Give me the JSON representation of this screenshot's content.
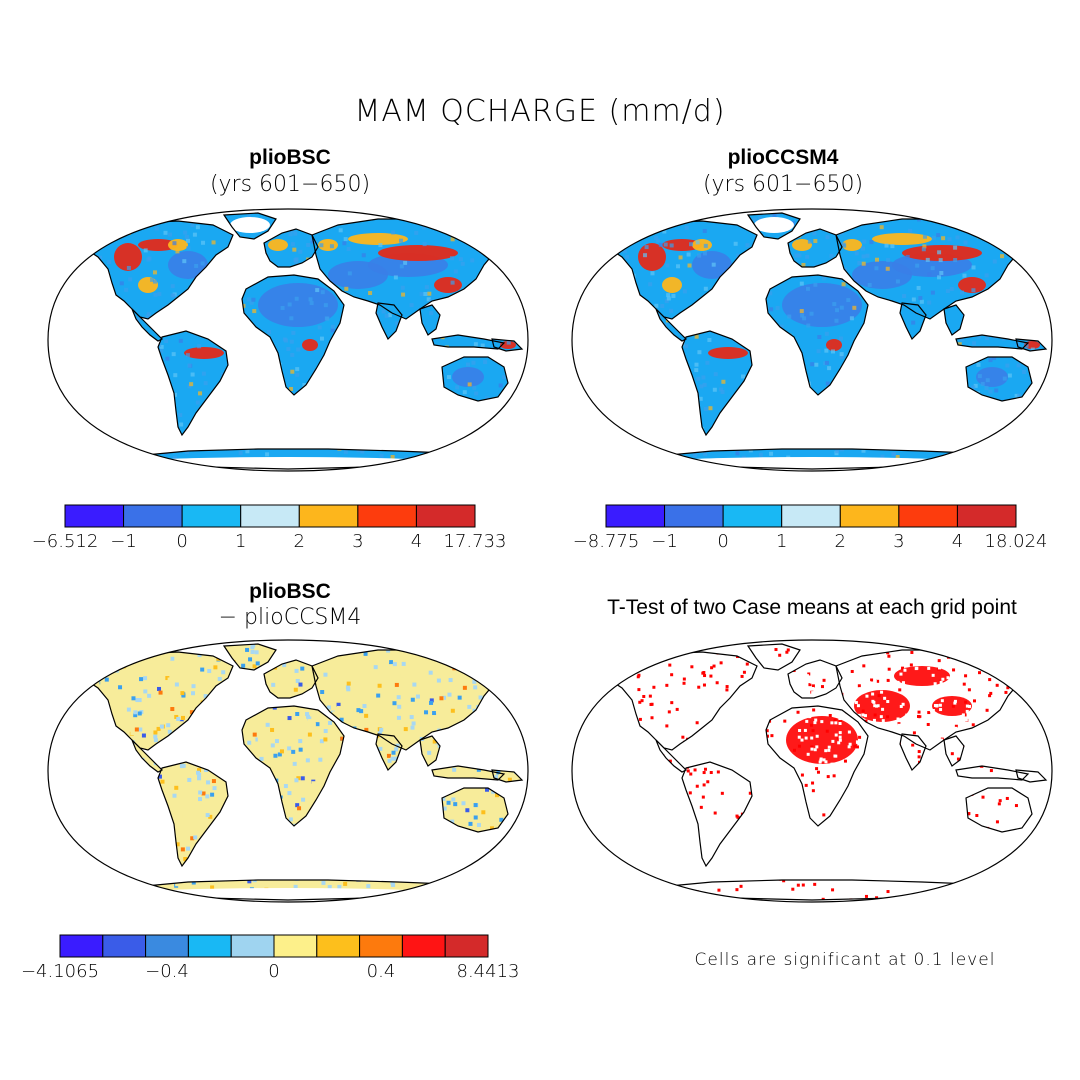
{
  "figure": {
    "title": "MAM QCHARGE (mm/d)"
  },
  "panels": [
    {
      "id": "plioBSC",
      "title": "plioBSC",
      "subtitle": "(yrs 601−650)",
      "colorbar": {
        "colors": [
          "#3a1cff",
          "#3a71e8",
          "#19b8f4",
          "#c7e9f6",
          "#fdb61c",
          "#fd3c0d",
          "#d42a2a"
        ],
        "labels": [
          "−6.512",
          "−1",
          "0",
          "1",
          "2",
          "3",
          "4",
          "17.733"
        ]
      }
    },
    {
      "id": "plioCCSM4",
      "title": "plioCCSM4",
      "subtitle": "(yrs 601−650)",
      "colorbar": {
        "colors": [
          "#3a1cff",
          "#3a71e8",
          "#19b8f4",
          "#c7e9f6",
          "#fdb61c",
          "#fd3c0d",
          "#d42a2a"
        ],
        "labels": [
          "−8.775",
          "−1",
          "0",
          "1",
          "2",
          "3",
          "4",
          "18.024"
        ]
      }
    },
    {
      "id": "diff",
      "title": "plioBSC",
      "subtitle": "− plioCCSM4",
      "colorbar": {
        "colors": [
          "#3a1cff",
          "#3a5ce8",
          "#3a8ae0",
          "#19b8f4",
          "#9fd4f0",
          "#fdf08a",
          "#fdbf1c",
          "#fd7a0d",
          "#ff1414",
          "#d42a2a"
        ],
        "labels": [
          "−4.1065",
          "−0.4",
          "0",
          "0.4",
          "8.4413"
        ]
      }
    },
    {
      "id": "ttest",
      "title": "T-Test of two Case means at each grid point",
      "note": "Cells are significant at 0.1 level",
      "significance_color": "#ff0000"
    }
  ],
  "land_colors": {
    "default_blue": "#1aa8f2",
    "dry_blue": "#3a7ee8",
    "red": "#e22a1a",
    "orange": "#fdb61c",
    "diff_yellow": "#f7ec9a",
    "diff_lightblue": "#a8d8f2"
  }
}
